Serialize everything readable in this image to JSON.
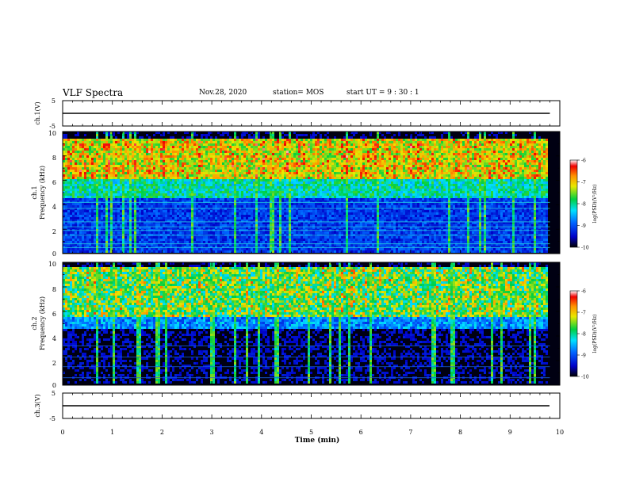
{
  "header": {
    "title": "VLF Spectra",
    "date": "Nov.28, 2020",
    "station": "station= MOS",
    "start": "start UT =  9 : 30 : 1"
  },
  "chart_data": [
    {
      "type": "line",
      "id": "ch1-waveform",
      "ylabel": "ch.1(V)",
      "yticks": [
        "5",
        "-5"
      ],
      "ylim": [
        -5,
        5
      ],
      "xlim": [
        0,
        10
      ],
      "series": [
        {
          "x": [
            0,
            9.8
          ],
          "y": [
            0,
            0
          ]
        }
      ]
    },
    {
      "type": "heatmap",
      "id": "ch1-spectrogram",
      "ylabel": "ch.1\nFrequency (kHz)",
      "yticks": [
        "0",
        "2",
        "4",
        "6",
        "8",
        "10"
      ],
      "ylim": [
        0,
        10
      ],
      "xlim": [
        0,
        10
      ],
      "colorbar": {
        "label": "log(PSD)(V²/Hz)",
        "ticks": [
          "-6",
          "-7",
          "-8",
          "-9",
          "-10"
        ],
        "range": [
          -10,
          -6
        ]
      }
    },
    {
      "type": "heatmap",
      "id": "ch2-spectrogram",
      "ylabel": "ch.2\nFrequency (kHz)",
      "yticks": [
        "0",
        "2",
        "4",
        "6",
        "8",
        "10"
      ],
      "ylim": [
        0,
        10
      ],
      "xlim": [
        0,
        10
      ],
      "colorbar": {
        "label": "log(PSD)(V²/Hz)",
        "ticks": [
          "-6",
          "-7",
          "-8",
          "-9",
          "-10"
        ],
        "range": [
          -10,
          -6
        ]
      }
    },
    {
      "type": "line",
      "id": "ch3-waveform",
      "ylabel": "ch.3(V)",
      "yticks": [
        "5",
        "-5"
      ],
      "ylim": [
        -5,
        5
      ],
      "xlim": [
        0,
        10
      ],
      "xlabel": "Time (min)",
      "xticks": [
        "0",
        "1",
        "2",
        "3",
        "4",
        "5",
        "6",
        "7",
        "8",
        "9",
        "10"
      ],
      "series": [
        {
          "x": [
            0,
            9.8
          ],
          "y": [
            0,
            0
          ]
        }
      ]
    }
  ]
}
